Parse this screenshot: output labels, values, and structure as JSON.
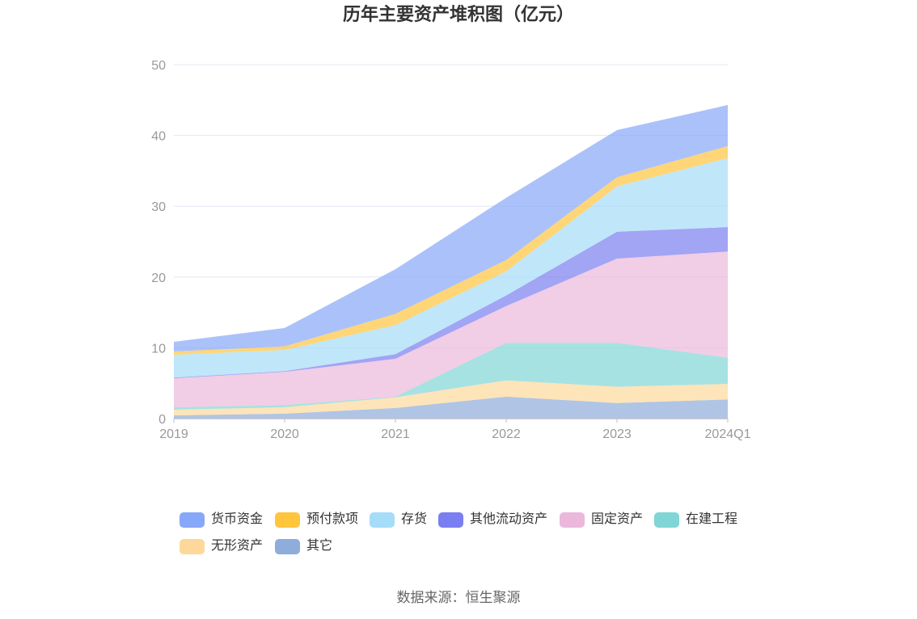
{
  "source": "数据来源：恒生聚源",
  "chart_data": {
    "type": "area",
    "stacked": true,
    "title": "历年主要资产堆积图（亿元）",
    "xlabel": "",
    "ylabel": "",
    "categories": [
      "2019",
      "2020",
      "2021",
      "2022",
      "2023",
      "2024Q1"
    ],
    "ylim": [
      0,
      50
    ],
    "yticks": [
      0,
      10,
      20,
      30,
      40,
      50
    ],
    "grid": true,
    "legend_position": "bottom",
    "series": [
      {
        "name": "货币资金",
        "color": "#87a7f8",
        "values": [
          1.38,
          2.6,
          6.3,
          8.8,
          6.65,
          5.8
        ]
      },
      {
        "name": "预付款项",
        "color": "#ffc53d",
        "values": [
          0.47,
          0.5,
          1.6,
          1.6,
          1.3,
          1.7
        ]
      },
      {
        "name": "存货",
        "color": "#a5dcf8",
        "values": [
          3.2,
          3.0,
          4.1,
          3.4,
          6.4,
          9.75
        ]
      },
      {
        "name": "其他流动资产",
        "color": "#7b7ef0",
        "values": [
          0.1,
          0.1,
          0.65,
          1.5,
          3.8,
          3.45
        ]
      },
      {
        "name": "固定资产",
        "color": "#ebb8dc",
        "values": [
          4.1,
          4.7,
          5.35,
          5.2,
          11.9,
          15.0
        ]
      },
      {
        "name": "在建工程",
        "color": "#80d6d6",
        "values": [
          0.35,
          0.3,
          0.1,
          5.3,
          6.2,
          3.7
        ]
      },
      {
        "name": "无形资产",
        "color": "#fed89b",
        "values": [
          0.8,
          0.9,
          1.5,
          2.3,
          2.3,
          2.2
        ]
      },
      {
        "name": "其它",
        "color": "#8eaddb",
        "values": [
          0.45,
          0.7,
          1.5,
          3.1,
          2.2,
          2.7
        ]
      }
    ]
  }
}
